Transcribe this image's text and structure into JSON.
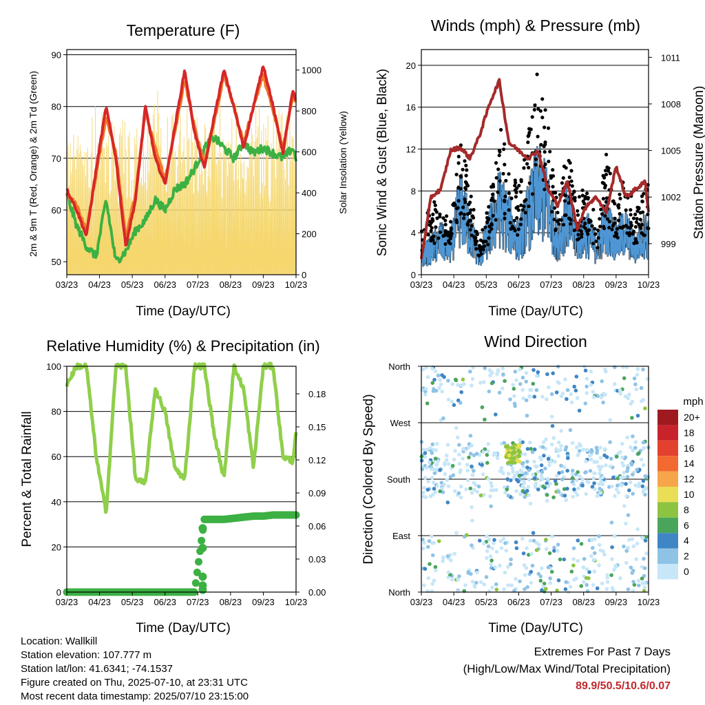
{
  "x_ticks": [
    "03/23",
    "04/23",
    "05/23",
    "06/23",
    "07/23",
    "08/23",
    "09/23",
    "10/23"
  ],
  "xlabel": "Time (Day/UTC)",
  "chart_data": [
    {
      "type": "line",
      "title": "Temperature (F)",
      "xlabel": "Time (Day/UTC)",
      "ylabel": "2m & 9m T (Red, Orange) & 2m Td (Green)",
      "ylabel_right": "Solar Insolation (Yellow)",
      "ylim": [
        47.5,
        91
      ],
      "yticks": [
        50,
        60,
        70,
        80,
        90
      ],
      "ylim_right": [
        0,
        1100
      ],
      "yticks_right": [
        0,
        200,
        400,
        600,
        800,
        1000
      ],
      "x": [
        0,
        0.3,
        0.6,
        0.9,
        1.2,
        1.5,
        1.8,
        2.1,
        2.4,
        2.7,
        3.0,
        3.3,
        3.6,
        3.9,
        4.2,
        4.5,
        4.8,
        5.1,
        5.4,
        5.7,
        6.0,
        6.3,
        6.6,
        6.9,
        7.0
      ],
      "series": [
        {
          "name": "2m T",
          "color": "#d62728",
          "values": [
            64,
            60,
            55,
            68,
            80,
            70,
            53,
            62,
            80,
            70,
            65,
            76,
            87,
            75,
            68,
            78,
            87,
            80,
            72,
            80,
            88,
            80,
            71,
            83,
            81
          ]
        },
        {
          "name": "9m T",
          "color": "#f07a28",
          "values": [
            63,
            61,
            56,
            67,
            78,
            71,
            55,
            63,
            79,
            72,
            66,
            75,
            85,
            76,
            69,
            77,
            86,
            80,
            73,
            80,
            86,
            79,
            72,
            82,
            81
          ]
        },
        {
          "name": "2m Td",
          "color": "#3cb043",
          "values": [
            63,
            57,
            53,
            51,
            62,
            50,
            52,
            56,
            58,
            62,
            60,
            64,
            65,
            68,
            72,
            74,
            72,
            70,
            73,
            71,
            72,
            71,
            70,
            72,
            70
          ]
        },
        {
          "name": "Solar Insolation",
          "color": "#f5d76e",
          "axis": "right",
          "values": [
            0,
            850,
            0,
            880,
            50,
            950,
            0,
            900,
            0,
            980,
            0,
            920,
            0,
            1000,
            100,
            1050,
            0,
            1000,
            50,
            1020,
            0,
            980,
            0,
            900,
            300
          ]
        }
      ]
    },
    {
      "type": "scatter",
      "title": "Winds (mph) & Pressure (mb)",
      "xlabel": "Time (Day/UTC)",
      "ylabel": "Sonic Wind & Gust (Blue, Black)",
      "ylabel_right": "Station Pressure (Maroon)",
      "ylim": [
        0,
        21.5
      ],
      "yticks": [
        0,
        4,
        8,
        12,
        16,
        20
      ],
      "ylim_right": [
        997,
        1011.5
      ],
      "yticks_right": [
        999,
        1002,
        1005,
        1008,
        1011
      ],
      "x": [
        0,
        0.3,
        0.6,
        0.9,
        1.2,
        1.5,
        1.8,
        2.1,
        2.4,
        2.7,
        3.0,
        3.3,
        3.6,
        3.9,
        4.2,
        4.5,
        4.8,
        5.1,
        5.4,
        5.7,
        6.0,
        6.3,
        6.6,
        6.9,
        7.0
      ],
      "series": [
        {
          "name": "Sonic Wind",
          "color": "#4f97d4",
          "values": [
            2,
            3,
            4,
            3,
            8,
            5,
            2,
            5,
            8,
            6,
            4,
            7,
            10,
            8,
            4,
            7,
            4,
            5,
            3,
            6,
            4,
            5,
            3,
            5,
            4
          ]
        },
        {
          "name": "Gust",
          "color": "#000000",
          "values": [
            4,
            7,
            6,
            5,
            12,
            9,
            3,
            7,
            14,
            10,
            8,
            13,
            19,
            14,
            6,
            12,
            7,
            9,
            5,
            11,
            7,
            9,
            6,
            8,
            9
          ]
        },
        {
          "name": "Station Pressure",
          "color": "#a52a2a",
          "axis": "right",
          "values": [
            998,
            1002,
            1002.5,
            1005,
            1005.2,
            1004.5,
            1006,
            1008,
            1009.5,
            1005.5,
            1005,
            1004.5,
            1005,
            1002.5,
            1001.5,
            1003,
            1000,
            1001.5,
            1002,
            1001,
            1004,
            1002,
            1002.5,
            1003,
            1001
          ]
        }
      ]
    },
    {
      "type": "line",
      "title": "Relative Humidity (%) & Precipitation (in)",
      "xlabel": "Time (Day/UTC)",
      "ylabel": "Percent & Total Rainfall",
      "ylim": [
        0,
        100
      ],
      "yticks": [
        0,
        20,
        40,
        60,
        80,
        100
      ],
      "ylim_right": [
        0,
        0.205
      ],
      "yticks_right": [
        "0.00",
        "0.03",
        "0.06",
        "0.09",
        "0.12",
        "0.15",
        "0.18"
      ],
      "x": [
        0,
        0.3,
        0.6,
        0.9,
        1.2,
        1.5,
        1.8,
        2.1,
        2.4,
        2.7,
        3.0,
        3.3,
        3.6,
        3.9,
        4.2,
        4.5,
        4.8,
        5.1,
        5.4,
        5.7,
        6.0,
        6.3,
        6.6,
        6.9,
        7.0
      ],
      "series": [
        {
          "name": "Relative Humidity",
          "color": "#8fcf4a",
          "values": [
            92,
            100,
            100,
            60,
            35,
            100,
            100,
            50,
            48,
            90,
            80,
            55,
            50,
            100,
            100,
            70,
            50,
            100,
            90,
            55,
            100,
            100,
            60,
            58,
            70
          ]
        },
        {
          "name": "Total Rainfall",
          "color": "#3cb043",
          "axis": "right",
          "values": [
            0,
            0,
            0,
            0,
            0,
            0,
            0,
            0,
            0,
            0,
            0,
            0,
            0,
            0,
            0.066,
            0.066,
            0.066,
            0.067,
            0.068,
            0.069,
            0.069,
            0.07,
            0.07,
            0.07,
            0.07
          ]
        }
      ]
    },
    {
      "type": "scatter",
      "title": "Wind Direction",
      "xlabel": "Time (Day/UTC)",
      "ylabel": "Direction (Colored By Speed)",
      "yticks": [
        "North",
        "East",
        "South",
        "West",
        "North"
      ],
      "colorbar": {
        "unit": "mph",
        "labels": [
          "20+",
          "18",
          "16",
          "14",
          "12",
          "10",
          "8",
          "6",
          "4",
          "2",
          "0"
        ],
        "colors": [
          "#9e1a1f",
          "#c8232b",
          "#e2412e",
          "#f26a30",
          "#f7a54a",
          "#e9de55",
          "#8cc441",
          "#4aa55b",
          "#3f86c4",
          "#8fc3e6",
          "#c7e6f7"
        ]
      }
    }
  ],
  "info": {
    "location": "Location: Wallkill",
    "elevation": "Station elevation: 107.777 m",
    "latlon": "Station lat/lon: 41.6341; -74.1537",
    "created": "Figure created on Thu, 2025-07-10, at 23:31 UTC",
    "recent": "Most recent data timestamp: 2025/07/10 23:15:00"
  },
  "extremes": {
    "title": "Extremes For Past 7 Days",
    "subtitle": "(High/Low/Max Wind/Total Precipitation)",
    "values": "89.9/50.5/10.6/0.07"
  }
}
